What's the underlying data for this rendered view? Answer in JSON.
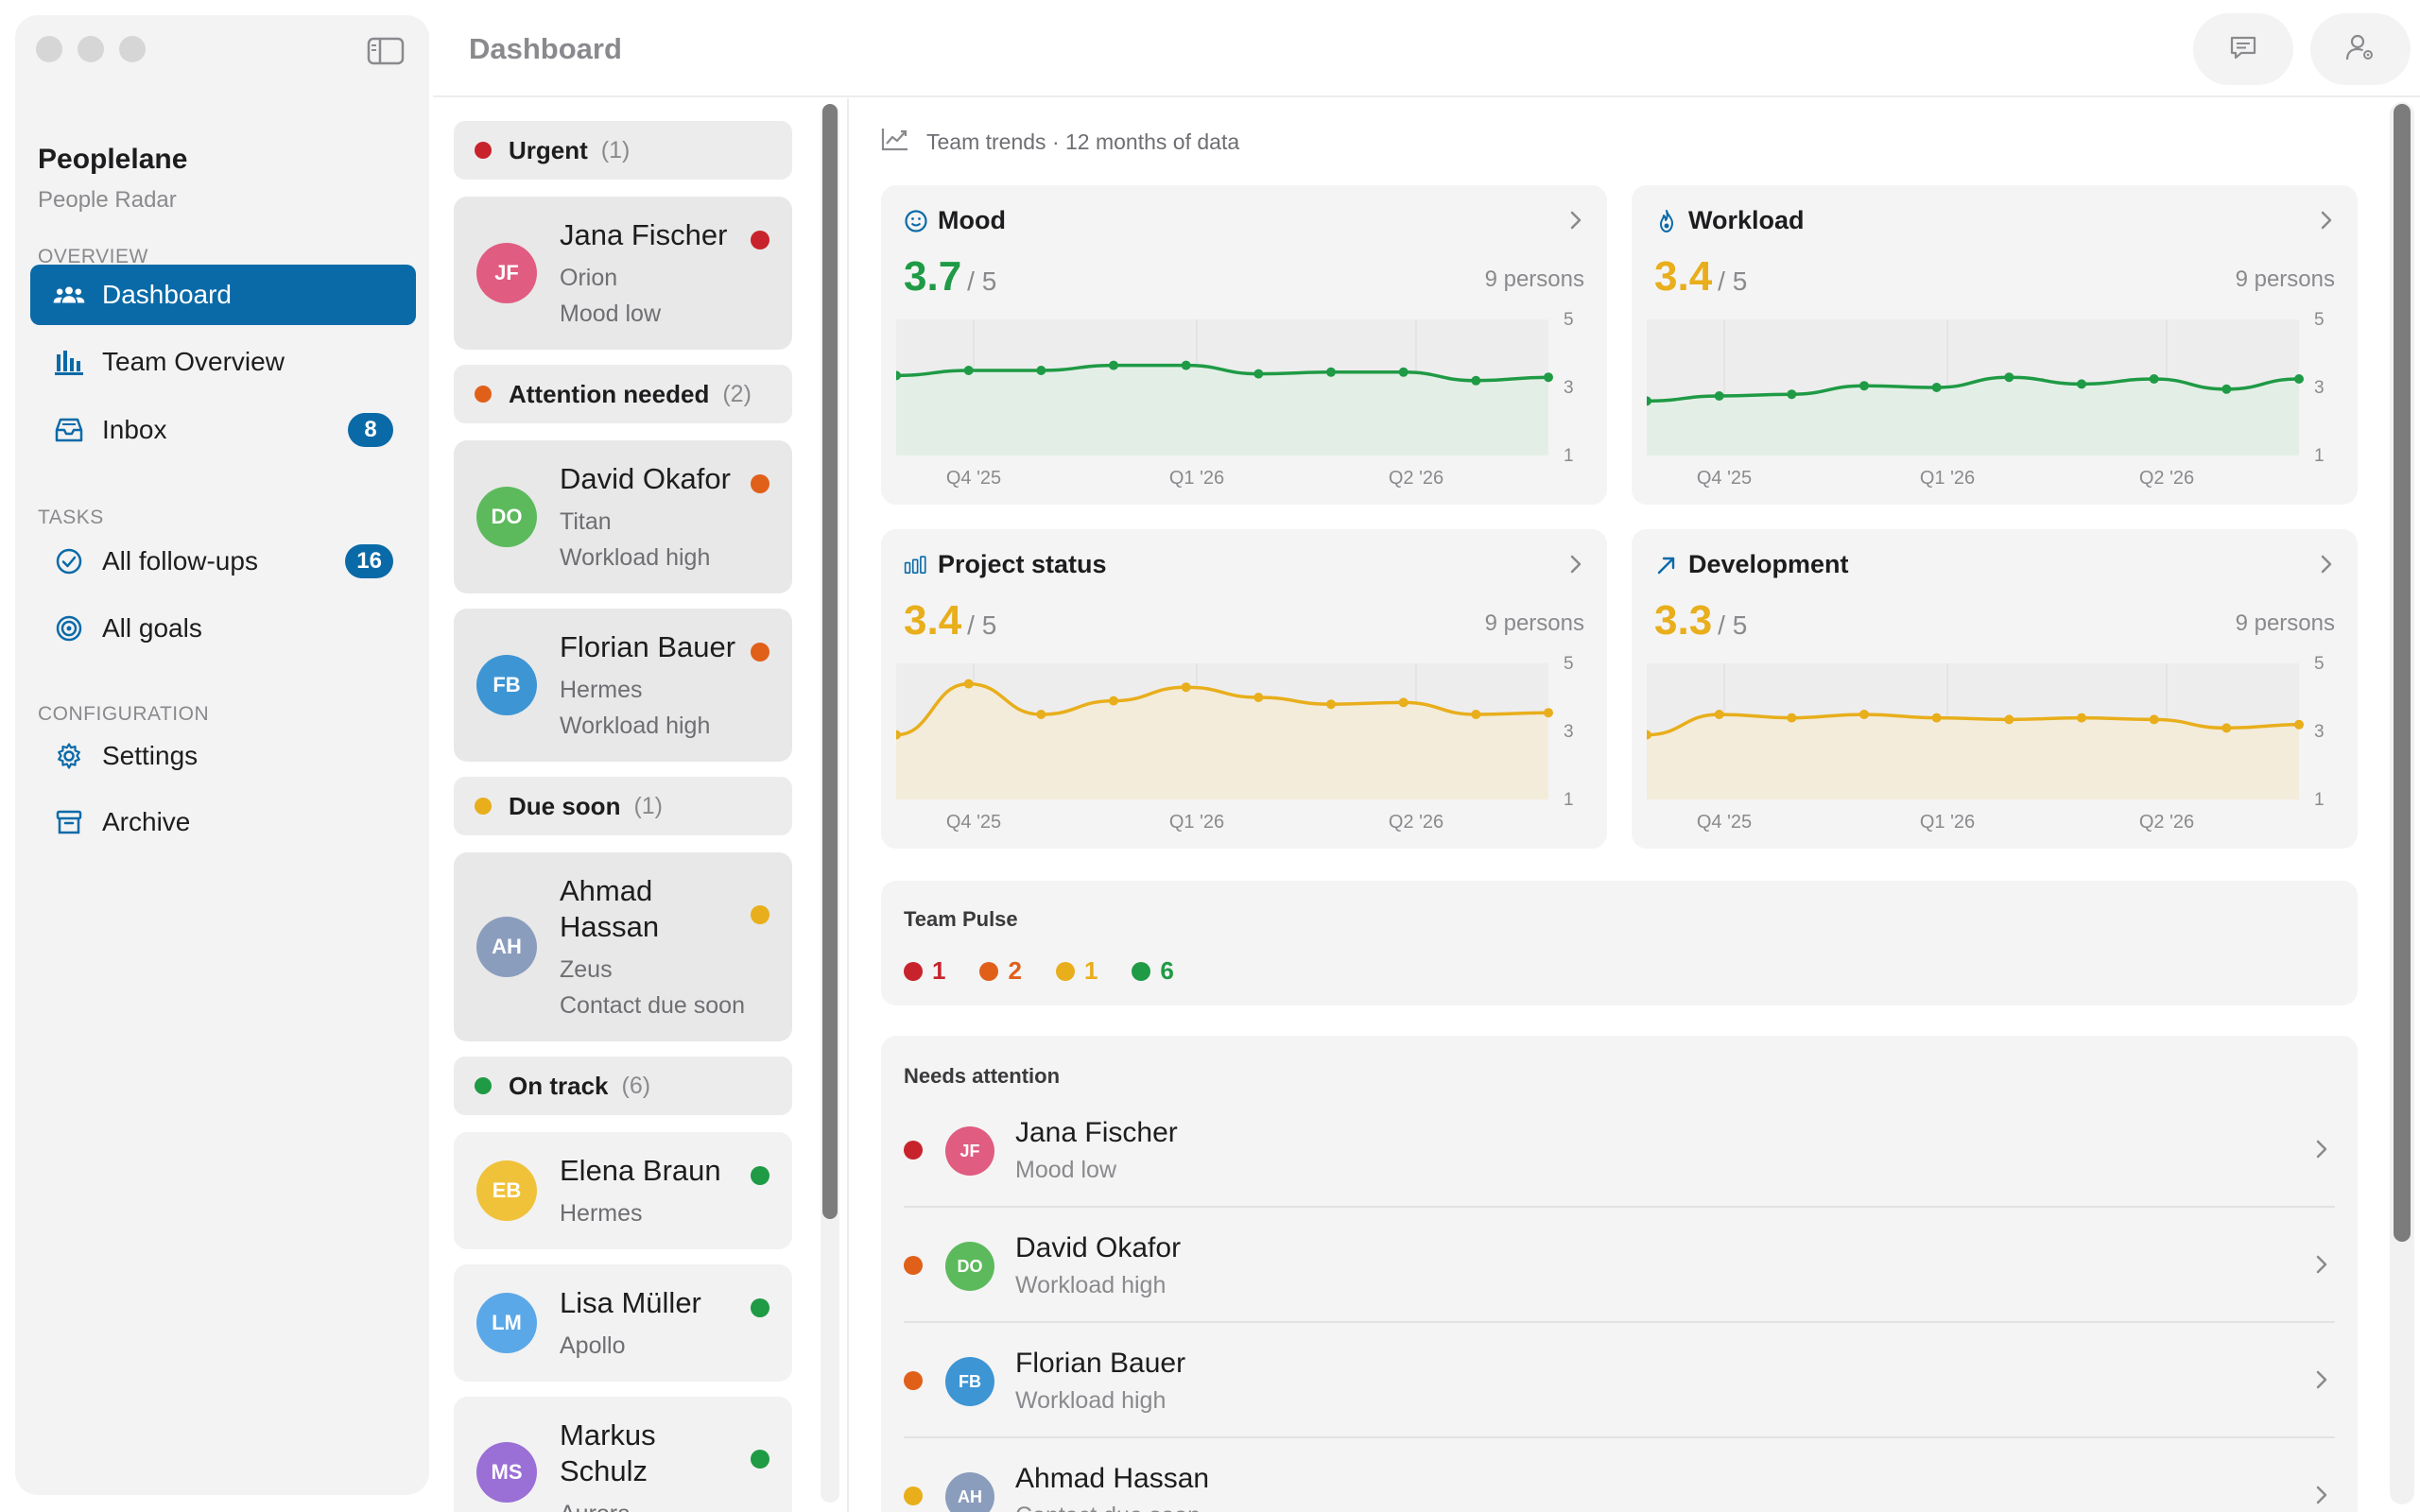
{
  "window": {
    "title": "Dashboard"
  },
  "sidebar": {
    "brand": {
      "name": "Peoplelane",
      "subtitle": "People Radar"
    },
    "sections": [
      {
        "title": "OVERVIEW",
        "items": [
          {
            "label": "Dashboard",
            "icon": "people-icon",
            "active": true
          },
          {
            "label": "Team Overview",
            "icon": "bar-chart-icon"
          },
          {
            "label": "Inbox",
            "icon": "inbox-icon",
            "badge": "8"
          }
        ]
      },
      {
        "title": "TASKS",
        "items": [
          {
            "label": "All follow-ups",
            "icon": "check-circle-icon",
            "badge": "16"
          },
          {
            "label": "All goals",
            "icon": "target-icon"
          }
        ]
      },
      {
        "title": "CONFIGURATION",
        "items": [
          {
            "label": "Settings",
            "icon": "gear-icon"
          },
          {
            "label": "Archive",
            "icon": "archive-icon"
          }
        ]
      }
    ]
  },
  "toolbar": {
    "buttons": [
      "chat-icon",
      "person-settings-icon"
    ]
  },
  "colors": {
    "red": "#c8232c",
    "orange": "#e0601a",
    "yellow": "#e8ae1b",
    "green": "#1f9a45",
    "accent": "#0a6aa8"
  },
  "people_list": {
    "groups": [
      {
        "title": "Urgent",
        "count": "(1)",
        "color": "#c8232c",
        "people": [
          {
            "initials": "JF",
            "name": "Jana Fischer",
            "project": "Orion",
            "status": "Mood low",
            "avatar_color": "#e05c80"
          }
        ]
      },
      {
        "title": "Attention needed",
        "count": "(2)",
        "color": "#e0601a",
        "people": [
          {
            "initials": "DO",
            "name": "David Okafor",
            "project": "Titan",
            "status": "Workload high",
            "avatar_color": "#5cba5c"
          },
          {
            "initials": "FB",
            "name": "Florian Bauer",
            "project": "Hermes",
            "status": "Workload high",
            "avatar_color": "#3d95d4"
          }
        ]
      },
      {
        "title": "Due soon",
        "count": "(1)",
        "color": "#e8ae1b",
        "people": [
          {
            "initials": "AH",
            "name": "Ahmad Hassan",
            "project": "Zeus",
            "status": "Contact due soon",
            "avatar_color": "#8b9dbd"
          }
        ]
      },
      {
        "title": "On track",
        "count": "(6)",
        "color": "#1f9a45",
        "people": [
          {
            "initials": "EB",
            "name": "Elena Braun",
            "project": "Hermes",
            "avatar_color": "#f0c23a"
          },
          {
            "initials": "LM",
            "name": "Lisa Müller",
            "project": "Apollo",
            "avatar_color": "#5ba8e8"
          },
          {
            "initials": "MS",
            "name": "Markus Schulz",
            "project": "Aurora",
            "avatar_color": "#9a6fd6"
          }
        ]
      }
    ]
  },
  "trends": {
    "header": "Team trends · 12 months of data",
    "x_ticks": [
      "Q4 '25",
      "Q1 '26",
      "Q2 '26"
    ],
    "y_ticks": [
      "5",
      "3",
      "1"
    ],
    "denominator": "/ 5",
    "cards": [
      {
        "title": "Mood",
        "icon": "smile-icon",
        "score": "3.7",
        "persons": "9 persons",
        "color": "#1f9a45",
        "values": [
          3.35,
          3.5,
          3.5,
          3.65,
          3.65,
          3.4,
          3.45,
          3.45,
          3.2,
          3.3
        ]
      },
      {
        "title": "Workload",
        "icon": "flame-icon",
        "score": "3.4",
        "persons": "9 persons",
        "color": "#1f9a45",
        "values": [
          2.6,
          2.75,
          2.8,
          3.05,
          3.0,
          3.3,
          3.1,
          3.25,
          2.95,
          3.25
        ]
      },
      {
        "title": "Project status",
        "icon": "bars-icon",
        "score": "3.4",
        "persons": "9 persons",
        "color": "#e8ae1b",
        "values": [
          2.9,
          4.4,
          3.5,
          3.9,
          4.3,
          4.0,
          3.8,
          3.85,
          3.5,
          3.55
        ]
      },
      {
        "title": "Development",
        "icon": "arrow-up-right-icon",
        "score": "3.3",
        "persons": "9 persons",
        "color": "#e8ae1b",
        "values": [
          2.9,
          3.5,
          3.4,
          3.5,
          3.4,
          3.35,
          3.4,
          3.35,
          3.1,
          3.2
        ]
      }
    ]
  },
  "pulse": {
    "title": "Team Pulse",
    "items": [
      {
        "value": "1",
        "color": "#c8232c"
      },
      {
        "value": "2",
        "color": "#e0601a"
      },
      {
        "value": "1",
        "color": "#e8ae1b"
      },
      {
        "value": "6",
        "color": "#1f9a45"
      }
    ]
  },
  "attention": {
    "title": "Needs attention",
    "rows": [
      {
        "initials": "JF",
        "name": "Jana Fischer",
        "status": "Mood low",
        "dot": "#c8232c",
        "avatar_color": "#e05c80"
      },
      {
        "initials": "DO",
        "name": "David Okafor",
        "status": "Workload high",
        "dot": "#e0601a",
        "avatar_color": "#5cba5c"
      },
      {
        "initials": "FB",
        "name": "Florian Bauer",
        "status": "Workload high",
        "dot": "#e0601a",
        "avatar_color": "#3d95d4"
      },
      {
        "initials": "AH",
        "name": "Ahmad Hassan",
        "status": "Contact due soon",
        "dot": "#e8ae1b",
        "avatar_color": "#8b9dbd"
      }
    ]
  }
}
